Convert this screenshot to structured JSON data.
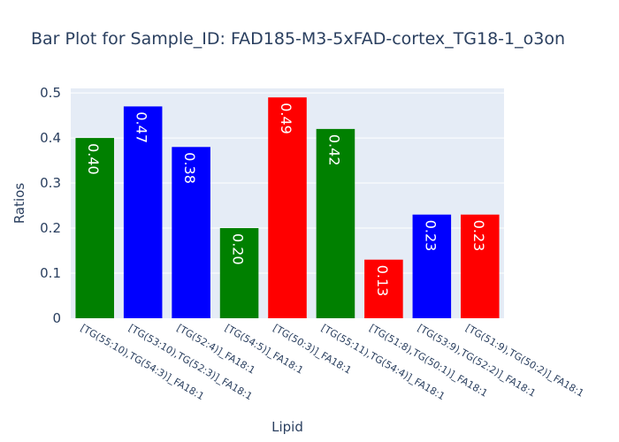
{
  "chart_data": {
    "type": "bar",
    "title": "Bar Plot for Sample_ID: FAD185-M3-5xFAD-cortex_TG18-1_o3on",
    "xlabel": "Lipid",
    "ylabel": "Ratios",
    "ylim": [
      0,
      0.51
    ],
    "yticks": [
      "0",
      "0.1",
      "0.2",
      "0.3",
      "0.4",
      "0.5"
    ],
    "grid": true,
    "legend": false,
    "categories": [
      "[TG(55:10),TG(54:3)]_FA18:1",
      "[TG(53:10),TG(52:3)]_FA18:1",
      "[TG(52:4)]_FA18:1",
      "[TG(54:5)]_FA18:1",
      "[TG(50:3)]_FA18:1",
      "[TG(55:11),TG(54:4)]_FA18:1",
      "[TG(51:8),TG(50:1)]_FA18:1",
      "[TG(53:9),TG(52:2)]_FA18:1",
      "[TG(51:9),TG(50:2)]_FA18:1"
    ],
    "values": [
      0.4,
      0.47,
      0.38,
      0.2,
      0.49,
      0.42,
      0.13,
      0.23,
      0.23
    ],
    "labels": [
      "0.40",
      "0.47",
      "0.38",
      "0.20",
      "0.49",
      "0.42",
      "0.13",
      "0.23",
      "0.23"
    ],
    "colors": [
      "#008000",
      "#0000ff",
      "#0000ff",
      "#008000",
      "#ff0000",
      "#008000",
      "#ff0000",
      "#0000ff",
      "#ff0000"
    ],
    "plot_bg": "#e5ecf6"
  }
}
